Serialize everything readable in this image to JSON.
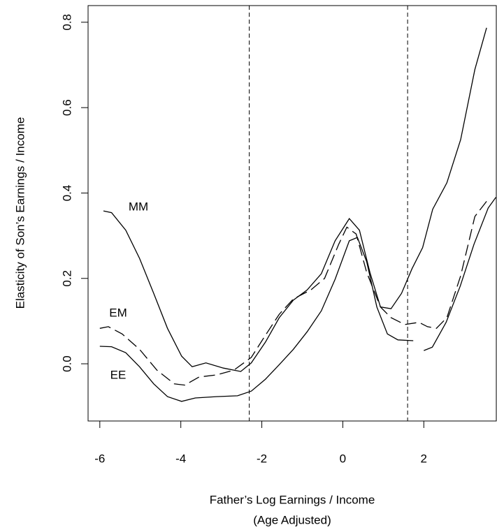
{
  "chart_data": {
    "type": "line",
    "ylabel": "Elasticity of Son’s Earnings / Income",
    "xlabel": [
      "Father’s Log Earnings / Income",
      "(Age Adjusted)"
    ],
    "xlim": [
      -6.29,
      3.79
    ],
    "ylim": [
      -0.134,
      0.839
    ],
    "xticks": [
      -6,
      -4,
      -2,
      0,
      2
    ],
    "yticks": [
      {
        "value": 0,
        "label": "0.0"
      },
      0.2,
      0.4,
      0.6,
      0.8
    ],
    "vlines": [
      -2.31,
      1.6
    ],
    "series": [
      {
        "name": "MM",
        "color": "#000000",
        "style": "solid",
        "x": [
          -5.91,
          -5.71,
          -5.36,
          -5.02,
          -4.67,
          -4.33,
          -3.98,
          -3.72,
          -3.38,
          -2.95,
          -2.52,
          -2.26,
          -1.91,
          -1.57,
          -1.22,
          -0.88,
          -0.53,
          -0.19,
          0.16,
          0.41,
          0.67,
          0.93,
          1.19,
          1.45,
          1.71,
          1.97,
          2.22,
          2.57,
          2.91,
          3.26,
          3.55
        ],
        "values": [
          0.358,
          0.354,
          0.313,
          0.247,
          0.165,
          0.083,
          0.018,
          -0.007,
          0.002,
          -0.01,
          -0.018,
          0.002,
          0.051,
          0.108,
          0.149,
          0.173,
          0.211,
          0.288,
          0.34,
          0.313,
          0.214,
          0.133,
          0.129,
          0.165,
          0.223,
          0.272,
          0.362,
          0.424,
          0.525,
          0.689,
          0.787
        ]
      },
      {
        "name": "EM",
        "color": "#000000",
        "style": "dashed",
        "x": [
          -6.0,
          -5.79,
          -5.45,
          -5.02,
          -4.59,
          -4.16,
          -3.9,
          -3.55,
          -3.12,
          -2.69,
          -2.26,
          -1.91,
          -1.57,
          -1.22,
          -0.79,
          -0.45,
          -0.1,
          0.1,
          0.33,
          0.59,
          0.93,
          1.19,
          1.53,
          1.88,
          2.09,
          2.31,
          2.57,
          2.91,
          3.26,
          3.57
        ],
        "values": [
          0.083,
          0.087,
          0.07,
          0.034,
          -0.015,
          -0.047,
          -0.05,
          -0.031,
          -0.026,
          -0.015,
          0.015,
          0.067,
          0.116,
          0.152,
          0.173,
          0.2,
          0.28,
          0.32,
          0.304,
          0.214,
          0.133,
          0.108,
          0.092,
          0.097,
          0.087,
          0.083,
          0.108,
          0.206,
          0.345,
          0.383
        ]
      },
      {
        "name": "EE",
        "color": "#000000",
        "style": "solid",
        "x": [
          -6.0,
          -5.71,
          -5.36,
          -5.02,
          -4.67,
          -4.33,
          -3.98,
          -3.64,
          -3.12,
          -2.6,
          -2.26,
          -1.91,
          -1.57,
          -1.22,
          -0.88,
          -0.53,
          -0.19,
          0.16,
          0.36,
          0.59,
          0.84,
          1.1,
          1.36,
          1.74,
          null,
          2.0,
          2.21,
          2.55,
          2.9,
          3.24,
          3.59,
          3.78
        ],
        "values": [
          0.041,
          0.04,
          0.026,
          -0.007,
          -0.047,
          -0.077,
          -0.088,
          -0.08,
          -0.077,
          -0.075,
          -0.064,
          -0.036,
          -0.002,
          0.034,
          0.075,
          0.124,
          0.198,
          0.288,
          0.296,
          0.239,
          0.133,
          0.07,
          0.056,
          0.054,
          null,
          0.031,
          0.039,
          0.097,
          0.182,
          0.28,
          0.365,
          0.39
        ]
      }
    ]
  }
}
